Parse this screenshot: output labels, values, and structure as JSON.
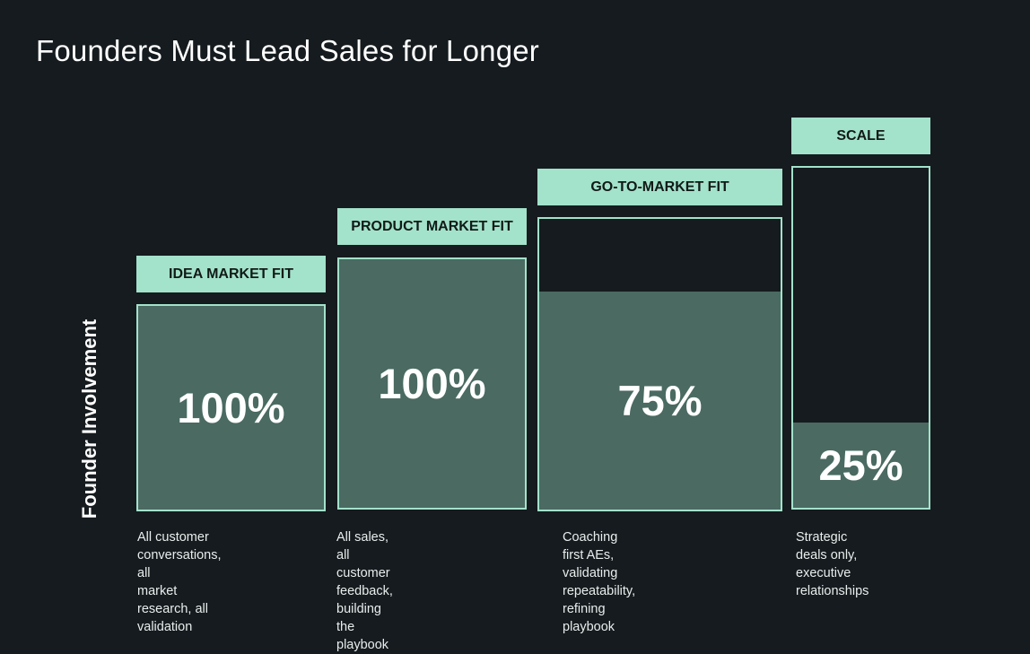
{
  "chart_data": {
    "type": "bar",
    "title": "Founders Must Lead Sales for Longer",
    "ylabel": "Founder Involvement",
    "ylim": [
      0,
      100
    ],
    "unit": "%",
    "categories": [
      "IDEA MARKET FIT",
      "PRODUCT MARKET FIT",
      "GO-TO-MARKET FIT",
      "SCALE"
    ],
    "values": [
      100,
      100,
      75,
      25
    ],
    "value_labels": [
      "100%",
      "100%",
      "75%",
      "25%"
    ],
    "descriptions": [
      [
        "All customer conversations, all",
        "market research, all validation"
      ],
      [
        "All sales, all customer feedback,",
        "building the playbook"
      ],
      [
        "Coaching first AEs, validating",
        "repeatability, refining playbook"
      ],
      [
        "Strategic deals only,",
        "executive relationships"
      ]
    ]
  },
  "colors": {
    "background": "#151b1e",
    "label_fill": "#a3e2cb",
    "bar_fill": "#4a6a62",
    "bar_border": "#a3e2cb"
  }
}
